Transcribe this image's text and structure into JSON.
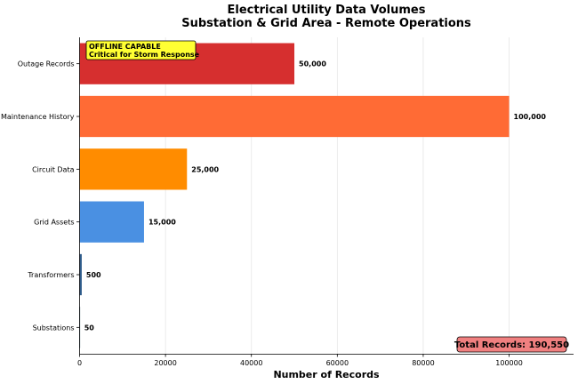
{
  "chart_data": {
    "type": "bar",
    "orientation": "horizontal",
    "title": "Electrical Utility Data Volumes",
    "subtitle": "Substation & Grid Area - Remote Operations",
    "xlabel": "Number of Records",
    "ylabel": "",
    "xlim": [
      0,
      115000
    ],
    "xticks": [
      0,
      20000,
      40000,
      60000,
      80000,
      100000
    ],
    "xtick_labels": [
      "0",
      "20000",
      "40000",
      "60000",
      "80000",
      "100000"
    ],
    "grid": "vertical",
    "categories": [
      "Outage Records",
      "Maintenance History",
      "Circuit Data",
      "Grid Assets",
      "Transformers",
      "Substations"
    ],
    "values": [
      50000,
      100000,
      25000,
      15000,
      500,
      50
    ],
    "value_labels": [
      "50,000",
      "100,000",
      "25,000",
      "15,000",
      "500",
      "50"
    ],
    "colors": [
      "#d62f2f",
      "#ff6b35",
      "#ff8c00",
      "#4a90e2",
      "#2e5b8a",
      "#1f3d5c"
    ],
    "annotations": {
      "offline_line1": "OFFLINE CAPABLE",
      "offline_line2": "Critical for Storm Response",
      "offline_bg": "#ffff33",
      "total": "Total Records: 190,550",
      "total_bg": "#f08080"
    }
  }
}
